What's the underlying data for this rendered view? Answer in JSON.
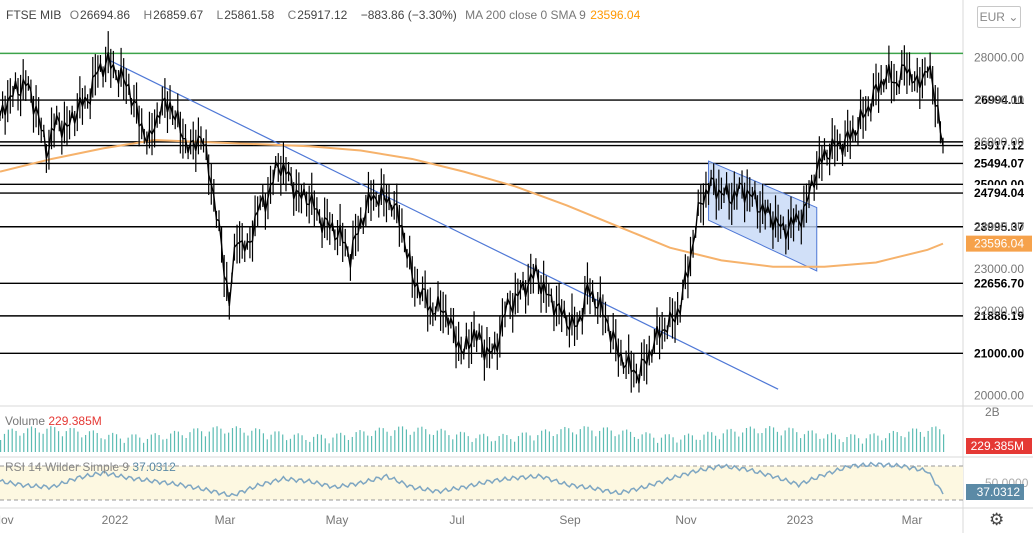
{
  "header": {
    "symbol": "FTSE MIB",
    "open_label": "O",
    "open": "26694.86",
    "high_label": "H",
    "high": "26859.67",
    "low_label": "L",
    "low": "25861.58",
    "close_label": "C",
    "close": "25917.12",
    "change": "−883.86 (−3.30%)",
    "ma_label": "MA 200 close 0 SMA 9",
    "ma_value": "23596.04"
  },
  "currency": "EUR",
  "volume": {
    "label": "Volume",
    "value": "229.385M"
  },
  "rsi": {
    "label": "RSI 14 Wilder Simple 9",
    "value": "37.0312"
  },
  "colors": {
    "price": "#000000",
    "ma": "#f6b26b",
    "trendline": "#4f78d6",
    "channel_fill": "#c5d8f6",
    "resistance": "#3ca34a",
    "volume": "#26a69a",
    "rsi": "#7ea6c2",
    "rsi_band": "#fdf8e1"
  },
  "chart_data": {
    "type": "line",
    "x_axis": {
      "ticks": [
        "Nov",
        "2022",
        "Mar",
        "May",
        "Jul",
        "Sep",
        "Nov",
        "2023",
        "Mar"
      ]
    },
    "y_axis": {
      "ticks": [
        "28000.00",
        "27000.00",
        "26000.00",
        "25000.00",
        "24000.00",
        "23000.00",
        "22000.00",
        "21000.00",
        "20000.00"
      ]
    },
    "ylim": [
      19800,
      28700
    ],
    "series": [
      {
        "name": "FTSE MIB",
        "points": [
          [
            0,
            26500
          ],
          [
            2,
            26900
          ],
          [
            6,
            27200
          ],
          [
            10,
            27400
          ],
          [
            14,
            26800
          ],
          [
            18,
            25800
          ],
          [
            22,
            26500
          ],
          [
            26,
            26300
          ],
          [
            30,
            26800
          ],
          [
            34,
            27000
          ],
          [
            38,
            27700
          ],
          [
            42,
            27900
          ],
          [
            46,
            27600
          ],
          [
            50,
            27300
          ],
          [
            54,
            26500
          ],
          [
            58,
            26000
          ],
          [
            62,
            26800
          ],
          [
            66,
            26900
          ],
          [
            70,
            26300
          ],
          [
            74,
            25800
          ],
          [
            78,
            26200
          ],
          [
            82,
            25100
          ],
          [
            86,
            23500
          ],
          [
            89,
            22200
          ],
          [
            92,
            23800
          ],
          [
            96,
            23400
          ],
          [
            100,
            24400
          ],
          [
            104,
            24700
          ],
          [
            108,
            25500
          ],
          [
            112,
            25200
          ],
          [
            116,
            24700
          ],
          [
            120,
            24700
          ],
          [
            124,
            24200
          ],
          [
            128,
            24000
          ],
          [
            132,
            23800
          ],
          [
            136,
            23300
          ],
          [
            140,
            24100
          ],
          [
            144,
            24700
          ],
          [
            148,
            24700
          ],
          [
            152,
            24600
          ],
          [
            156,
            24000
          ],
          [
            160,
            22800
          ],
          [
            164,
            22400
          ],
          [
            168,
            22000
          ],
          [
            172,
            22100
          ],
          [
            176,
            21500
          ],
          [
            180,
            21000
          ],
          [
            184,
            21500
          ],
          [
            188,
            21100
          ],
          [
            192,
            21000
          ],
          [
            196,
            22000
          ],
          [
            200,
            22300
          ],
          [
            204,
            22600
          ],
          [
            208,
            22900
          ],
          [
            212,
            22400
          ],
          [
            216,
            22100
          ],
          [
            220,
            21800
          ],
          [
            224,
            21600
          ],
          [
            228,
            22500
          ],
          [
            232,
            22200
          ],
          [
            236,
            21700
          ],
          [
            240,
            21000
          ],
          [
            244,
            20700
          ],
          [
            248,
            20500
          ],
          [
            252,
            21000
          ],
          [
            256,
            21500
          ],
          [
            260,
            21700
          ],
          [
            264,
            22100
          ],
          [
            268,
            23300
          ],
          [
            272,
            24600
          ],
          [
            276,
            25000
          ],
          [
            280,
            24800
          ],
          [
            284,
            24700
          ],
          [
            288,
            24900
          ],
          [
            292,
            24700
          ],
          [
            296,
            24400
          ],
          [
            300,
            24200
          ],
          [
            304,
            23900
          ],
          [
            308,
            24100
          ],
          [
            312,
            24300
          ],
          [
            316,
            25200
          ],
          [
            320,
            25700
          ],
          [
            324,
            25900
          ],
          [
            328,
            26000
          ],
          [
            332,
            26300
          ],
          [
            336,
            26700
          ],
          [
            340,
            27200
          ],
          [
            344,
            27600
          ],
          [
            348,
            27400
          ],
          [
            352,
            27800
          ],
          [
            356,
            27300
          ],
          [
            360,
            27800
          ],
          [
            364,
            26800
          ],
          [
            366,
            25917
          ]
        ]
      },
      {
        "name": "MA 200",
        "points": [
          [
            0,
            25300
          ],
          [
            20,
            25600
          ],
          [
            40,
            25850
          ],
          [
            60,
            26050
          ],
          [
            80,
            26000
          ],
          [
            100,
            25950
          ],
          [
            120,
            25900
          ],
          [
            140,
            25800
          ],
          [
            160,
            25600
          ],
          [
            180,
            25300
          ],
          [
            200,
            24950
          ],
          [
            220,
            24500
          ],
          [
            240,
            24000
          ],
          [
            260,
            23500
          ],
          [
            280,
            23200
          ],
          [
            300,
            23050
          ],
          [
            320,
            23050
          ],
          [
            340,
            23150
          ],
          [
            360,
            23450
          ],
          [
            366,
            23596
          ]
        ]
      },
      {
        "name": "RSI",
        "points": [
          [
            0,
            52
          ],
          [
            10,
            47
          ],
          [
            20,
            45
          ],
          [
            30,
            56
          ],
          [
            40,
            62
          ],
          [
            50,
            56
          ],
          [
            60,
            52
          ],
          [
            70,
            48
          ],
          [
            80,
            42
          ],
          [
            90,
            35
          ],
          [
            100,
            47
          ],
          [
            110,
            55
          ],
          [
            120,
            52
          ],
          [
            130,
            45
          ],
          [
            140,
            50
          ],
          [
            150,
            58
          ],
          [
            160,
            45
          ],
          [
            170,
            40
          ],
          [
            180,
            45
          ],
          [
            190,
            52
          ],
          [
            200,
            56
          ],
          [
            210,
            58
          ],
          [
            220,
            48
          ],
          [
            230,
            44
          ],
          [
            240,
            38
          ],
          [
            250,
            45
          ],
          [
            260,
            55
          ],
          [
            270,
            64
          ],
          [
            280,
            70
          ],
          [
            290,
            66
          ],
          [
            300,
            58
          ],
          [
            310,
            48
          ],
          [
            320,
            60
          ],
          [
            330,
            70
          ],
          [
            340,
            72
          ],
          [
            350,
            70
          ],
          [
            360,
            64
          ],
          [
            366,
            37
          ]
        ]
      }
    ],
    "horizontal_levels": [
      "26994.11",
      "26004.85",
      "25917.12",
      "25494.07",
      "25000.00",
      "24794.04",
      "23995.37",
      "22656.70",
      "21886.19",
      "21000.00"
    ],
    "volume_axis": {
      "ticks": [
        "2B"
      ]
    },
    "rsi_axis": {
      "ticks": [
        "50.0000"
      ]
    }
  }
}
